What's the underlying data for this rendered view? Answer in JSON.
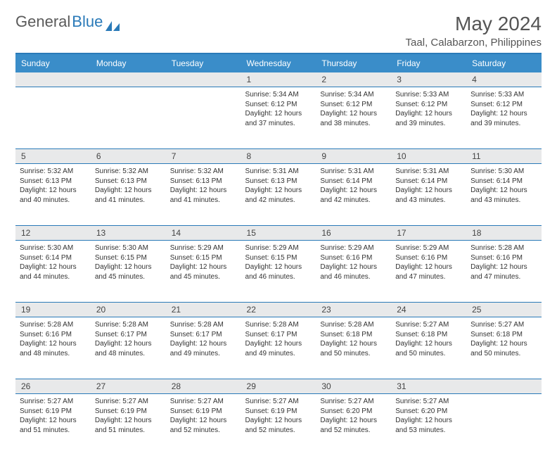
{
  "brand": {
    "part1": "General",
    "part2": "Blue"
  },
  "title": "May 2024",
  "location": "Taal, Calabarzon, Philippines",
  "colors": {
    "header_bg": "#3a8dc9",
    "accent": "#2a7ab8",
    "daynum_bg": "#e8e9ea",
    "text": "#333333",
    "title_text": "#555555"
  },
  "weekdays": [
    "Sunday",
    "Monday",
    "Tuesday",
    "Wednesday",
    "Thursday",
    "Friday",
    "Saturday"
  ],
  "weeks": [
    {
      "nums": [
        "",
        "",
        "",
        "1",
        "2",
        "3",
        "4"
      ],
      "cells": [
        null,
        null,
        null,
        {
          "sunrise": "5:34 AM",
          "sunset": "6:12 PM",
          "daylight": "12 hours and 37 minutes."
        },
        {
          "sunrise": "5:34 AM",
          "sunset": "6:12 PM",
          "daylight": "12 hours and 38 minutes."
        },
        {
          "sunrise": "5:33 AM",
          "sunset": "6:12 PM",
          "daylight": "12 hours and 39 minutes."
        },
        {
          "sunrise": "5:33 AM",
          "sunset": "6:12 PM",
          "daylight": "12 hours and 39 minutes."
        }
      ]
    },
    {
      "nums": [
        "5",
        "6",
        "7",
        "8",
        "9",
        "10",
        "11"
      ],
      "cells": [
        {
          "sunrise": "5:32 AM",
          "sunset": "6:13 PM",
          "daylight": "12 hours and 40 minutes."
        },
        {
          "sunrise": "5:32 AM",
          "sunset": "6:13 PM",
          "daylight": "12 hours and 41 minutes."
        },
        {
          "sunrise": "5:32 AM",
          "sunset": "6:13 PM",
          "daylight": "12 hours and 41 minutes."
        },
        {
          "sunrise": "5:31 AM",
          "sunset": "6:13 PM",
          "daylight": "12 hours and 42 minutes."
        },
        {
          "sunrise": "5:31 AM",
          "sunset": "6:14 PM",
          "daylight": "12 hours and 42 minutes."
        },
        {
          "sunrise": "5:31 AM",
          "sunset": "6:14 PM",
          "daylight": "12 hours and 43 minutes."
        },
        {
          "sunrise": "5:30 AM",
          "sunset": "6:14 PM",
          "daylight": "12 hours and 43 minutes."
        }
      ]
    },
    {
      "nums": [
        "12",
        "13",
        "14",
        "15",
        "16",
        "17",
        "18"
      ],
      "cells": [
        {
          "sunrise": "5:30 AM",
          "sunset": "6:14 PM",
          "daylight": "12 hours and 44 minutes."
        },
        {
          "sunrise": "5:30 AM",
          "sunset": "6:15 PM",
          "daylight": "12 hours and 45 minutes."
        },
        {
          "sunrise": "5:29 AM",
          "sunset": "6:15 PM",
          "daylight": "12 hours and 45 minutes."
        },
        {
          "sunrise": "5:29 AM",
          "sunset": "6:15 PM",
          "daylight": "12 hours and 46 minutes."
        },
        {
          "sunrise": "5:29 AM",
          "sunset": "6:16 PM",
          "daylight": "12 hours and 46 minutes."
        },
        {
          "sunrise": "5:29 AM",
          "sunset": "6:16 PM",
          "daylight": "12 hours and 47 minutes."
        },
        {
          "sunrise": "5:28 AM",
          "sunset": "6:16 PM",
          "daylight": "12 hours and 47 minutes."
        }
      ]
    },
    {
      "nums": [
        "19",
        "20",
        "21",
        "22",
        "23",
        "24",
        "25"
      ],
      "cells": [
        {
          "sunrise": "5:28 AM",
          "sunset": "6:16 PM",
          "daylight": "12 hours and 48 minutes."
        },
        {
          "sunrise": "5:28 AM",
          "sunset": "6:17 PM",
          "daylight": "12 hours and 48 minutes."
        },
        {
          "sunrise": "5:28 AM",
          "sunset": "6:17 PM",
          "daylight": "12 hours and 49 minutes."
        },
        {
          "sunrise": "5:28 AM",
          "sunset": "6:17 PM",
          "daylight": "12 hours and 49 minutes."
        },
        {
          "sunrise": "5:28 AM",
          "sunset": "6:18 PM",
          "daylight": "12 hours and 50 minutes."
        },
        {
          "sunrise": "5:27 AM",
          "sunset": "6:18 PM",
          "daylight": "12 hours and 50 minutes."
        },
        {
          "sunrise": "5:27 AM",
          "sunset": "6:18 PM",
          "daylight": "12 hours and 50 minutes."
        }
      ]
    },
    {
      "nums": [
        "26",
        "27",
        "28",
        "29",
        "30",
        "31",
        ""
      ],
      "cells": [
        {
          "sunrise": "5:27 AM",
          "sunset": "6:19 PM",
          "daylight": "12 hours and 51 minutes."
        },
        {
          "sunrise": "5:27 AM",
          "sunset": "6:19 PM",
          "daylight": "12 hours and 51 minutes."
        },
        {
          "sunrise": "5:27 AM",
          "sunset": "6:19 PM",
          "daylight": "12 hours and 52 minutes."
        },
        {
          "sunrise": "5:27 AM",
          "sunset": "6:19 PM",
          "daylight": "12 hours and 52 minutes."
        },
        {
          "sunrise": "5:27 AM",
          "sunset": "6:20 PM",
          "daylight": "12 hours and 52 minutes."
        },
        {
          "sunrise": "5:27 AM",
          "sunset": "6:20 PM",
          "daylight": "12 hours and 53 minutes."
        },
        null
      ]
    }
  ],
  "labels": {
    "sunrise": "Sunrise:",
    "sunset": "Sunset:",
    "daylight": "Daylight:"
  }
}
